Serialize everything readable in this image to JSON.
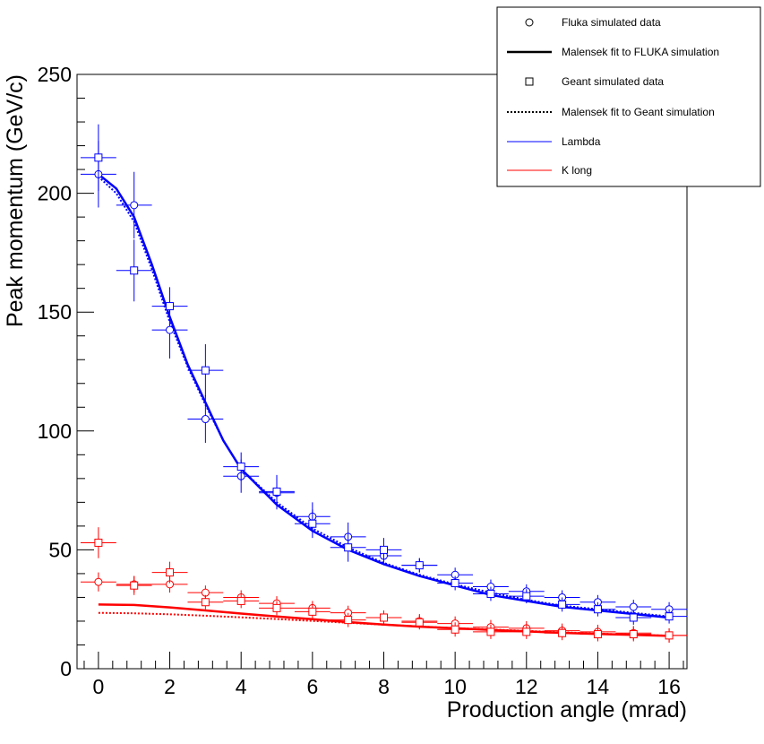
{
  "chart_data": {
    "type": "scatter",
    "xlabel": "Production angle (mrad)",
    "ylabel": "Peak momentum (GeV/c)",
    "xlim": [
      -0.6,
      16.5
    ],
    "ylim": [
      0,
      250
    ],
    "x_ticks": [
      0,
      2,
      4,
      6,
      8,
      10,
      12,
      14,
      16
    ],
    "y_ticks": [
      0,
      50,
      100,
      150,
      200,
      250
    ],
    "x_tick_labels": [
      "0",
      "2",
      "4",
      "6",
      "8",
      "10",
      "12",
      "14",
      "16"
    ],
    "y_tick_labels": [
      "0",
      "50",
      "100",
      "150",
      "200",
      "250"
    ],
    "legend_position": "top-right",
    "legend": [
      {
        "label": "Fluka simulated data",
        "symbol": "circle",
        "color": "#000000"
      },
      {
        "label": "Malensek fit to FLUKA simulation",
        "symbol": "solid-line",
        "color": "#000000"
      },
      {
        "label": "Geant simulated data",
        "symbol": "square",
        "color": "#000000"
      },
      {
        "label": "Malensek fit to Geant simulation",
        "symbol": "dotted-line",
        "color": "#000000"
      },
      {
        "label": "Lambda",
        "symbol": "line",
        "color": "#0000ff"
      },
      {
        "label": "K long",
        "symbol": "line",
        "color": "#ff0000"
      }
    ],
    "x_error": 0.5,
    "series": [
      {
        "name": "Lambda Fluka simulated data",
        "color": "#0000ff",
        "marker": "circle",
        "x": [
          0,
          1,
          2,
          3,
          4,
          5,
          6,
          7,
          8,
          9,
          10,
          11,
          12,
          13,
          14,
          15,
          16
        ],
        "y": [
          208,
          195,
          142.5,
          105,
          81,
          74,
          64,
          55.5,
          47.5,
          43.5,
          39.5,
          34.5,
          32.5,
          30,
          28,
          26,
          25
        ],
        "yerr": [
          14,
          14,
          12,
          10,
          7,
          7,
          6,
          6,
          4,
          3,
          3,
          3,
          3,
          3,
          3,
          3,
          3
        ]
      },
      {
        "name": "Lambda Geant simulated data",
        "color": "#0000ff",
        "marker": "square",
        "x": [
          0,
          1,
          2,
          3,
          4,
          5,
          6,
          7,
          8,
          9,
          10,
          11,
          12,
          13,
          14,
          15,
          16
        ],
        "y": [
          215,
          167.5,
          152.5,
          125.5,
          85,
          74.5,
          61,
          51,
          50,
          43.5,
          36,
          31.5,
          30.5,
          27,
          25,
          21.5,
          22
        ],
        "yerr": [
          14,
          13,
          8,
          11,
          6,
          7,
          6,
          6,
          5,
          3,
          3,
          3,
          3,
          3,
          3,
          3,
          3
        ]
      },
      {
        "name": "K long Fluka simulated data",
        "color": "#ff0000",
        "marker": "circle",
        "x": [
          0,
          1,
          2,
          3,
          4,
          5,
          6,
          7,
          8,
          9,
          10,
          11,
          12,
          13,
          14,
          15,
          16
        ],
        "y": [
          36.5,
          35.5,
          35.5,
          32,
          30,
          27.5,
          25.5,
          23.5,
          21.5,
          20,
          19,
          17.5,
          17,
          16,
          15.5,
          15,
          14
        ],
        "yerr": [
          4,
          3.5,
          3.5,
          3,
          3,
          3,
          3,
          3,
          3,
          3,
          3,
          3,
          3,
          3,
          3,
          3,
          3
        ]
      },
      {
        "name": "K long Geant simulated data",
        "color": "#ff0000",
        "marker": "square",
        "x": [
          0,
          1,
          2,
          3,
          4,
          5,
          6,
          7,
          8,
          9,
          10,
          11,
          12,
          13,
          14,
          15,
          16
        ],
        "y": [
          53,
          35,
          40.5,
          28,
          28.5,
          25.5,
          24,
          20.5,
          21.5,
          19.5,
          16.5,
          15.5,
          15.5,
          15,
          14.5,
          14.5,
          14
        ],
        "yerr": [
          6.5,
          4,
          4.5,
          3,
          3,
          3,
          3,
          3,
          3,
          3,
          3,
          3,
          3,
          3,
          3,
          3,
          3
        ]
      }
    ],
    "fits": [
      {
        "name": "Lambda Malensek fit to FLUKA simulation",
        "color": "#0000ff",
        "style": "solid",
        "x": [
          0,
          0.5,
          1,
          1.5,
          2,
          2.5,
          3,
          3.5,
          4,
          5,
          6,
          7,
          8,
          9,
          10,
          11,
          12,
          13,
          14,
          15,
          16
        ],
        "y": [
          208,
          202,
          190,
          170,
          148,
          128,
          112,
          96,
          84,
          69,
          58,
          50,
          44,
          39,
          35,
          31,
          28.5,
          26,
          24.5,
          23,
          21.5
        ]
      },
      {
        "name": "Lambda Malensek fit to Geant simulation",
        "color": "#0000ff",
        "style": "dotted",
        "x": [
          0,
          0.5,
          1,
          1.5,
          2,
          2.5,
          3,
          3.5,
          4,
          5,
          6,
          7,
          8,
          9,
          10,
          11,
          12,
          13,
          14,
          15,
          16
        ],
        "y": [
          207,
          200,
          188,
          168,
          146,
          127,
          111,
          96,
          84,
          70,
          59,
          51,
          44.5,
          39.5,
          35.5,
          32,
          29,
          26.5,
          25,
          23.5,
          22
        ]
      },
      {
        "name": "K long Malensek fit to FLUKA simulation",
        "color": "#ff0000",
        "style": "solid",
        "x": [
          0,
          1,
          2,
          3,
          4,
          5,
          6,
          7,
          8,
          9,
          10,
          11,
          12,
          13,
          14,
          15,
          16
        ],
        "y": [
          27,
          26.8,
          25.8,
          24.5,
          23.2,
          22,
          20.8,
          19.6,
          18.6,
          17.7,
          17,
          16.3,
          15.7,
          15.1,
          14.6,
          14.2,
          13.8
        ]
      },
      {
        "name": "K long Malensek fit to Geant simulation",
        "color": "#ff0000",
        "style": "dotted",
        "x": [
          0,
          1,
          2,
          3,
          4,
          5,
          6,
          7,
          8,
          9,
          10,
          11,
          12,
          13,
          14,
          15,
          16
        ],
        "y": [
          23.5,
          23.3,
          22.9,
          22.3,
          21.6,
          20.9,
          20.1,
          19.3,
          18.5,
          17.8,
          17.1,
          16.5,
          15.9,
          15.3,
          14.8,
          14.3,
          13.9
        ]
      }
    ]
  }
}
